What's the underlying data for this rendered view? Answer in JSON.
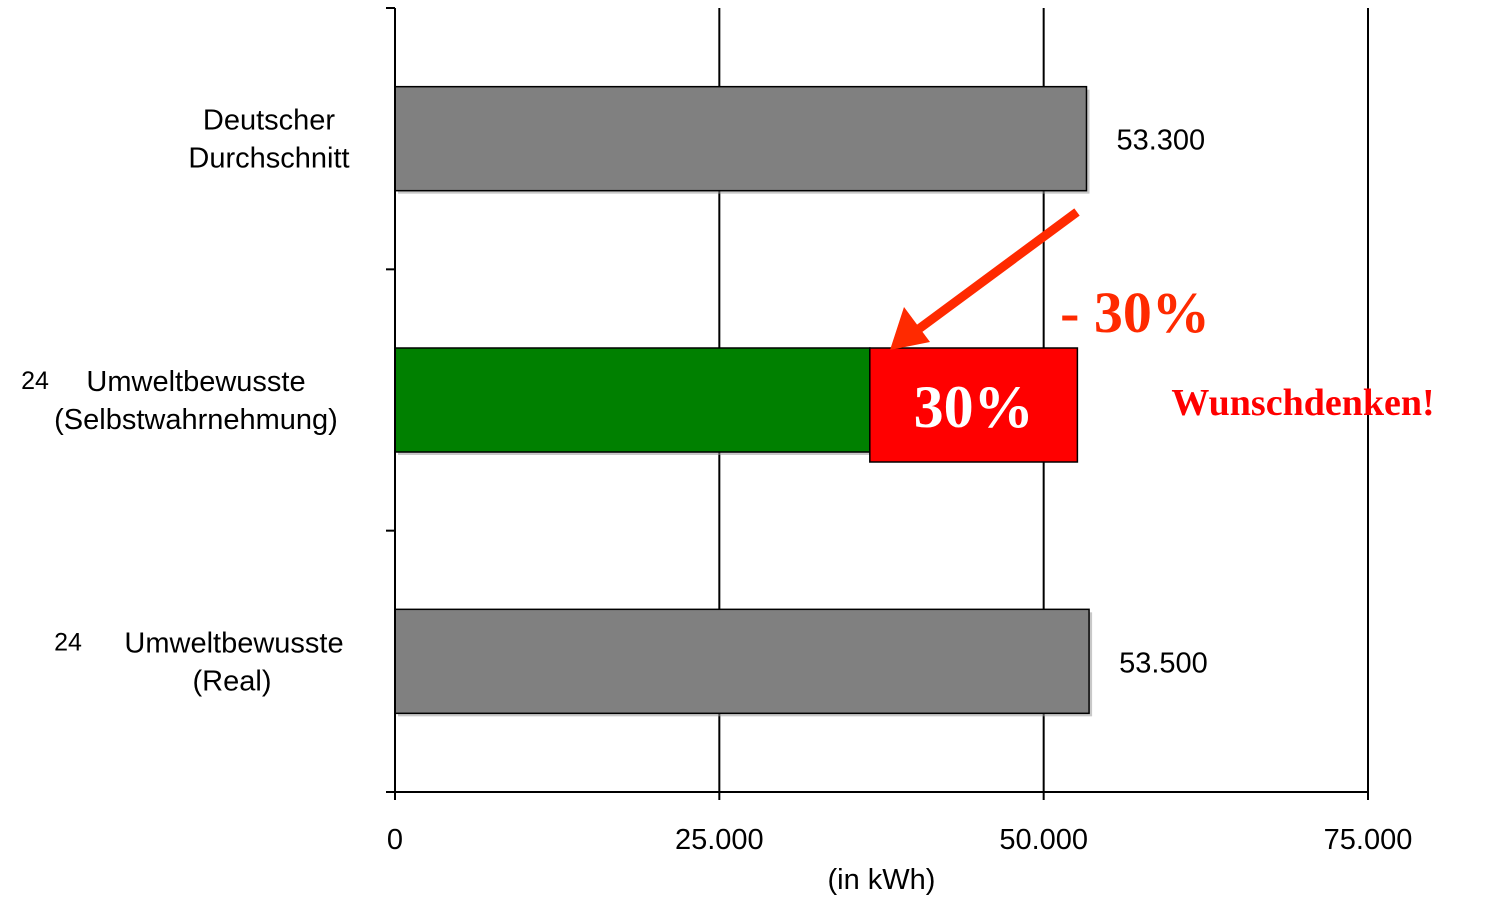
{
  "chart_data": {
    "type": "bar",
    "orientation": "horizontal",
    "xlabel": "(in kWh)",
    "xlim": [
      0,
      75000
    ],
    "x_ticks": [
      {
        "value": 0,
        "label": "0"
      },
      {
        "value": 25000,
        "label": "25.000"
      },
      {
        "value": 50000,
        "label": "50.000"
      },
      {
        "value": 75000,
        "label": "75.000"
      }
    ],
    "grid": "vertical",
    "categories": [
      {
        "superscript": "",
        "lines": [
          "Deutscher",
          "Durchschnitt"
        ]
      },
      {
        "superscript": "24",
        "lines": [
          "Umweltbewusste",
          "(Selbstwahrnehmung)"
        ]
      },
      {
        "superscript": "24",
        "lines": [
          "Umweltbewusste",
          "(Real)"
        ]
      }
    ],
    "bars": [
      {
        "value": 53300,
        "value_label": "53.300",
        "color": "#808080"
      },
      {
        "value": 36600,
        "value_label": "",
        "color": "#008000",
        "stacked_extra": {
          "value": 16000,
          "label": "30%",
          "color": "#ff0000"
        }
      },
      {
        "value": 53500,
        "value_label": "53.500",
        "color": "#808080"
      }
    ],
    "annotations": {
      "reduction": {
        "text": "- 30%",
        "color": "#ff2a00"
      },
      "note": {
        "text": "Wunschdenken!",
        "color": "#ff0000"
      },
      "arrow_color": "#ff2a00"
    }
  }
}
